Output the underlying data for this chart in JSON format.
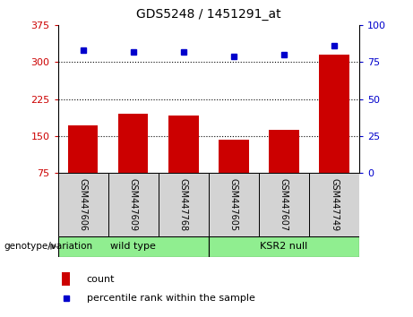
{
  "title": "GDS5248 / 1451291_at",
  "samples": [
    "GSM447606",
    "GSM447609",
    "GSM447768",
    "GSM447605",
    "GSM447607",
    "GSM447749"
  ],
  "counts": [
    172,
    195,
    192,
    143,
    163,
    315
  ],
  "percentile_ranks": [
    83,
    82,
    82,
    79,
    80,
    86
  ],
  "group_labels": [
    "wild type",
    "KSR2 null"
  ],
  "group_colors": [
    "#90ee90",
    "#90ee90"
  ],
  "group_ranges": [
    [
      0,
      2
    ],
    [
      3,
      5
    ]
  ],
  "left_yaxis": {
    "min": 75,
    "max": 375,
    "ticks": [
      75,
      150,
      225,
      300,
      375
    ],
    "color": "#cc0000"
  },
  "right_yaxis": {
    "min": 0,
    "max": 100,
    "ticks": [
      0,
      25,
      50,
      75,
      100
    ],
    "color": "#0000cc"
  },
  "bar_color": "#cc0000",
  "dot_color": "#0000cc",
  "grid_lines": [
    150,
    225,
    300
  ],
  "legend_count_label": "count",
  "legend_pct_label": "percentile rank within the sample",
  "genotype_label": "genotype/variation",
  "tick_area_color": "#d3d3d3",
  "bar_width": 0.6
}
